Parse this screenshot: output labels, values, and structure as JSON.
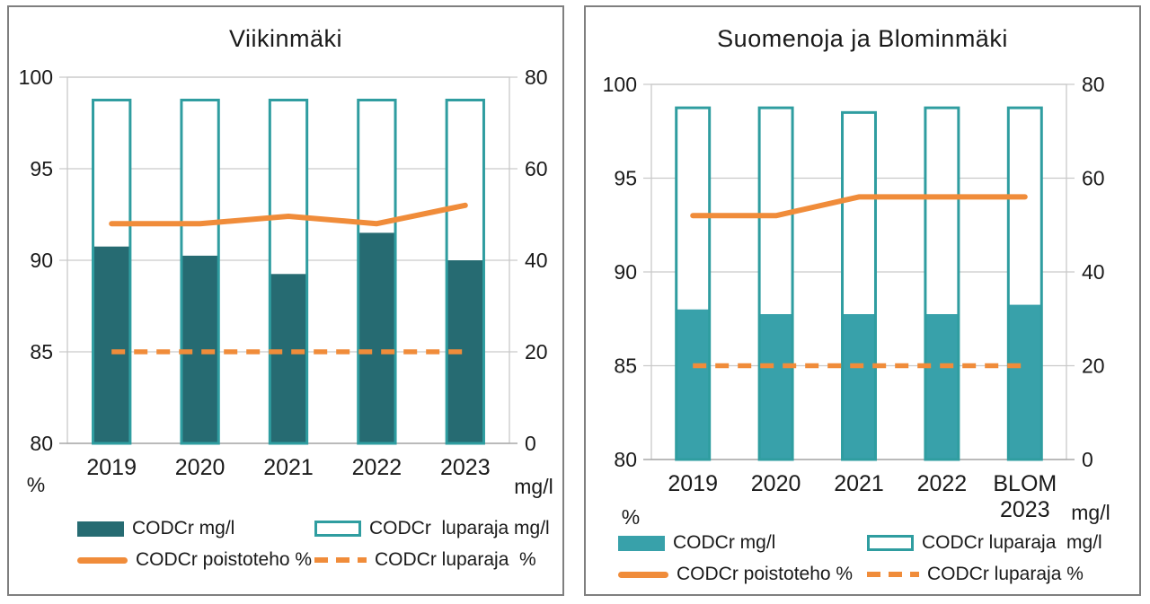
{
  "page": {
    "background": "#ffffff",
    "panel_border_color": "#7f7f7f"
  },
  "chart_data": [
    {
      "type": "bar",
      "title": "Viikinmäki",
      "categories": [
        "2019",
        "2020",
        "2021",
        "2022",
        "2023"
      ],
      "series": [
        {
          "name": "CODCr mg/l",
          "kind": "bar-filled",
          "axis": "right",
          "unit": "mg/l",
          "values": [
            43,
            41,
            37,
            46,
            40
          ]
        },
        {
          "name": "CODCr  luparaja mg/l",
          "kind": "bar-outlined",
          "axis": "right",
          "unit": "mg/l",
          "values": [
            75,
            75,
            75,
            75,
            75
          ]
        },
        {
          "name": "CODCr poistoteho %",
          "kind": "line-solid",
          "axis": "left",
          "unit": "%",
          "values": [
            92,
            92,
            92.4,
            92,
            93
          ]
        },
        {
          "name": "CODCr luparaja  %",
          "kind": "line-dashed",
          "axis": "left",
          "unit": "%",
          "values": [
            85,
            85,
            85,
            85,
            85
          ]
        }
      ],
      "axes": {
        "left": {
          "label": "%",
          "min": 80,
          "max": 100,
          "ticks": [
            100,
            95,
            90,
            85,
            80
          ]
        },
        "right": {
          "label": "mg/l",
          "min": 0,
          "max": 80,
          "ticks": [
            80,
            60,
            40,
            20,
            0
          ]
        }
      },
      "grid": true,
      "legend_position": "bottom",
      "colors": {
        "bar_fill": "#266b72",
        "bar_stroke": "#2f9da0",
        "line": "#f08c3a",
        "grid": "#c9c9c9",
        "axis": "#a8a8a8",
        "text": "#1a1a1a"
      }
    },
    {
      "type": "bar",
      "title": "Suomenoja ja Blominmäki",
      "categories": [
        "2019",
        "2020",
        "2021",
        "2022",
        "BLOM\n2023"
      ],
      "series": [
        {
          "name": "CODCr mg/l",
          "kind": "bar-filled",
          "axis": "right",
          "unit": "mg/l",
          "values": [
            32,
            31,
            31,
            31,
            33
          ]
        },
        {
          "name": "CODCr luparaja  mg/l",
          "kind": "bar-outlined",
          "axis": "right",
          "unit": "mg/l",
          "values": [
            75,
            75,
            74,
            75,
            75
          ]
        },
        {
          "name": "CODCr poistoteho %",
          "kind": "line-solid",
          "axis": "left",
          "unit": "%",
          "values": [
            93,
            93,
            94,
            94,
            94
          ]
        },
        {
          "name": "CODCr luparaja %",
          "kind": "line-dashed",
          "axis": "left",
          "unit": "%",
          "values": [
            85,
            85,
            85,
            85,
            85
          ]
        }
      ],
      "axes": {
        "left": {
          "label": "%",
          "min": 80,
          "max": 100,
          "ticks": [
            100,
            95,
            90,
            85,
            80
          ]
        },
        "right": {
          "label": "mg/l",
          "min": 0,
          "max": 80,
          "ticks": [
            80,
            60,
            40,
            20,
            0
          ]
        }
      },
      "grid": true,
      "legend_position": "bottom",
      "colors": {
        "bar_fill": "#38a1aa",
        "bar_stroke": "#2f9da0",
        "line": "#f08c3a",
        "grid": "#c9c9c9",
        "axis": "#a8a8a8",
        "text": "#1a1a1a"
      }
    }
  ]
}
